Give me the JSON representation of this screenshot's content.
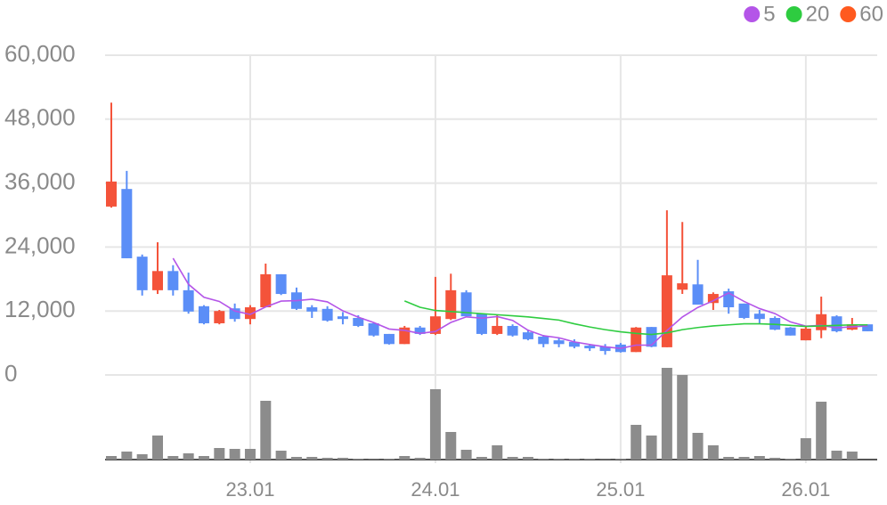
{
  "chart_data": {
    "type": "candlestick",
    "categories": [
      null,
      null,
      null,
      null,
      null,
      null,
      null,
      null,
      null,
      "23.01",
      null,
      null,
      null,
      null,
      null,
      null,
      null,
      null,
      null,
      null,
      null,
      "24.01",
      null,
      null,
      null,
      null,
      null,
      null,
      null,
      null,
      null,
      null,
      null,
      "25.01",
      null,
      null,
      null,
      null,
      null,
      null,
      null,
      null,
      null,
      null,
      null,
      "26.01",
      null,
      null,
      null,
      null
    ],
    "open": [
      31600,
      34900,
      22200,
      15900,
      19500,
      15900,
      12900,
      9700,
      12500,
      10500,
      12700,
      18900,
      15500,
      12700,
      12400,
      11000,
      10700,
      9700,
      7700,
      5800,
      8900,
      7700,
      10500,
      15500,
      11500,
      7700,
      9200,
      8000,
      7200,
      6500,
      6200,
      5500,
      5300,
      5700,
      4300,
      9000,
      5200,
      16000,
      17000,
      13500,
      15700,
      13400,
      11500,
      10700,
      8900,
      6500,
      8400,
      11000,
      8500,
      9500
    ],
    "high": [
      51100,
      38300,
      22600,
      24900,
      20600,
      19200,
      13100,
      12200,
      13400,
      13100,
      20900,
      18900,
      16400,
      13100,
      12900,
      11800,
      11200,
      9900,
      7700,
      9200,
      9200,
      18400,
      19000,
      15900,
      11600,
      11200,
      9500,
      8500,
      7500,
      6900,
      6700,
      5800,
      5800,
      6000,
      9000,
      9000,
      30900,
      28700,
      21600,
      15500,
      16200,
      13400,
      12200,
      11000,
      9000,
      9200,
      14700,
      11200,
      10700,
      9500
    ],
    "low": [
      31400,
      21900,
      14900,
      15200,
      14900,
      11500,
      9500,
      9500,
      10000,
      9500,
      12700,
      15000,
      12200,
      10700,
      10000,
      9500,
      9000,
      7200,
      5700,
      5800,
      7500,
      7500,
      10300,
      11000,
      7500,
      7500,
      7200,
      6500,
      5200,
      5200,
      5000,
      4500,
      3800,
      4200,
      4300,
      5200,
      5200,
      15200,
      13200,
      12200,
      11500,
      10500,
      9700,
      8400,
      7400,
      6500,
      6900,
      8000,
      8400,
      8200
    ],
    "close": [
      36300,
      21900,
      15900,
      19500,
      15900,
      11900,
      9700,
      12000,
      10500,
      12700,
      18900,
      15200,
      12400,
      11900,
      10200,
      10500,
      9200,
      7400,
      5800,
      8900,
      7700,
      11000,
      15900,
      11000,
      7700,
      9200,
      7400,
      6700,
      5800,
      5800,
      5300,
      5000,
      4500,
      4300,
      8900,
      5300,
      18700,
      17200,
      13200,
      15200,
      12700,
      10700,
      10500,
      8500,
      7400,
      8700,
      11400,
      8200,
      9500,
      8200
    ],
    "up_color": "#f4533a",
    "down_color": "#5b8ef7",
    "volume": {
      "color": "#8c8c8c",
      "ylim": [
        0,
        110
      ],
      "values": [
        4,
        9,
        6,
        27,
        4,
        7,
        4,
        13,
        12,
        12,
        66,
        10,
        3,
        3,
        2,
        2,
        1,
        0.5,
        1,
        4,
        2,
        79,
        31,
        11,
        3,
        16,
        3,
        3,
        1,
        1,
        1,
        1,
        0.5,
        1,
        39,
        27,
        103,
        95,
        30,
        16,
        3,
        3,
        4,
        2,
        1,
        24,
        65,
        10,
        9,
        0
      ]
    },
    "series": [
      {
        "name": "5",
        "color": "#b455e8",
        "values": [
          null,
          null,
          null,
          null,
          21900,
          17020,
          14580,
          13800,
          12000,
          11360,
          12760,
          13860,
          13940,
          14220,
          13720,
          12040,
          10840,
          9840,
          8620,
          8360,
          7800,
          8160,
          9860,
          10900,
          10660,
          10960,
          10240,
          8400,
          7360,
          6980,
          6200,
          5720,
          5280,
          4980,
          5600,
          5600,
          8340,
          10880,
          12660,
          13920,
          15400,
          13800,
          12460,
          11520,
          9960,
          9160,
          9300,
          8840,
          9040,
          9200
        ]
      },
      {
        "name": "20",
        "color": "#2ecc40",
        "values": [
          null,
          null,
          null,
          null,
          null,
          null,
          null,
          null,
          null,
          null,
          null,
          null,
          null,
          null,
          null,
          null,
          null,
          null,
          null,
          13900,
          12700,
          12100,
          11900,
          11700,
          11500,
          11300,
          11100,
          10900,
          10600,
          10300,
          9600,
          9000,
          8500,
          8100,
          7800,
          7600,
          7900,
          8500,
          8900,
          9200,
          9400,
          9600,
          9600,
          9500,
          9300,
          9100,
          9200,
          9300,
          9400,
          9400
        ]
      },
      {
        "name": "60",
        "color": "#ff5a1f",
        "values": [
          null,
          null,
          null,
          null,
          null,
          null,
          null,
          null,
          null,
          null,
          null,
          null,
          null,
          null,
          null,
          null,
          null,
          null,
          null,
          null,
          null,
          null,
          null,
          null,
          null,
          null,
          null,
          null,
          null,
          null,
          null,
          null,
          null,
          null,
          null,
          null,
          null,
          null,
          null,
          null,
          null,
          null,
          null,
          null,
          null,
          null,
          null,
          null,
          null,
          null
        ]
      }
    ],
    "ylim": [
      0,
      60000
    ],
    "yticks": [
      0,
      {
        "value": 12000,
        "label": "12,000"
      },
      {
        "value": 24000,
        "label": "24,000"
      },
      {
        "value": 36000,
        "label": "36,000"
      },
      {
        "value": 48000,
        "label": "48,000"
      },
      {
        "value": 60000,
        "label": "60,000"
      }
    ],
    "grid": true,
    "legend": "top-right"
  }
}
